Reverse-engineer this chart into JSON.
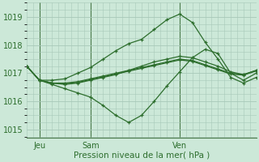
{
  "background_color": "#cce8d8",
  "grid_color": "#a8c8b8",
  "line_color": "#2d6e2d",
  "marker_color": "#2d6e2d",
  "xlabel": "Pression niveau de la mer( hPa )",
  "ylim": [
    1014.7,
    1019.5
  ],
  "yticks": [
    1015,
    1016,
    1017,
    1018,
    1019
  ],
  "xtick_labels": [
    "Jeu",
    "Sam",
    "Ven"
  ],
  "xtick_positions": [
    12,
    60,
    144
  ],
  "vline_positions": [
    12,
    60,
    144
  ],
  "num_points": 216,
  "series": [
    {
      "x": [
        0,
        12,
        24,
        36,
        48,
        60,
        72,
        84,
        96,
        108,
        120,
        132,
        144,
        156,
        168,
        180,
        192,
        204,
        216
      ],
      "y": [
        1017.25,
        1016.75,
        1016.75,
        1016.8,
        1017.0,
        1017.2,
        1017.5,
        1017.8,
        1018.05,
        1018.2,
        1018.55,
        1018.9,
        1019.1,
        1018.8,
        1018.1,
        1017.5,
        1016.85,
        1016.65,
        1016.85
      ]
    },
    {
      "x": [
        0,
        12,
        24,
        36,
        48,
        60,
        72,
        84,
        96,
        108,
        120,
        132,
        144,
        156,
        168,
        180,
        192,
        204,
        216
      ],
      "y": [
        1017.25,
        1016.75,
        1016.6,
        1016.45,
        1016.3,
        1016.15,
        1015.85,
        1015.5,
        1015.25,
        1015.5,
        1016.0,
        1016.55,
        1017.05,
        1017.55,
        1017.85,
        1017.7,
        1017.0,
        1016.75,
        1017.0
      ]
    },
    {
      "x": [
        0,
        12,
        24,
        36,
        48,
        60,
        72,
        84,
        96,
        108,
        120,
        132,
        144,
        156,
        168,
        180,
        192,
        204,
        216
      ],
      "y": [
        1017.25,
        1016.75,
        1016.65,
        1016.6,
        1016.65,
        1016.75,
        1016.85,
        1016.95,
        1017.1,
        1017.25,
        1017.4,
        1017.5,
        1017.6,
        1017.55,
        1017.4,
        1017.25,
        1017.05,
        1016.95,
        1017.1
      ]
    },
    {
      "x": [
        0,
        12,
        24,
        36,
        48,
        60,
        72,
        84,
        96,
        108,
        120,
        132,
        144,
        156,
        168,
        180,
        192,
        204,
        216
      ],
      "y": [
        1017.25,
        1016.75,
        1016.65,
        1016.65,
        1016.7,
        1016.8,
        1016.9,
        1017.0,
        1017.1,
        1017.2,
        1017.3,
        1017.4,
        1017.5,
        1017.45,
        1017.3,
        1017.15,
        1017.0,
        1016.95,
        1017.1
      ]
    },
    {
      "x": [
        0,
        12,
        24,
        36,
        48,
        60,
        72,
        84,
        96,
        108,
        120,
        132,
        144,
        156,
        168,
        180,
        192,
        204,
        216
      ],
      "y": [
        1017.25,
        1016.75,
        1016.65,
        1016.62,
        1016.67,
        1016.77,
        1016.87,
        1016.97,
        1017.07,
        1017.17,
        1017.27,
        1017.37,
        1017.47,
        1017.42,
        1017.27,
        1017.12,
        1016.97,
        1016.93,
        1017.08
      ]
    }
  ],
  "right_series": [
    {
      "x": [
        144,
        156,
        168,
        180,
        192,
        204,
        216
      ],
      "y": [
        1019.1,
        1018.05,
        1017.45,
        1016.85,
        1016.7,
        1017.1,
        1017.35
      ]
    },
    {
      "x": [
        144,
        156,
        168,
        180,
        192,
        204,
        216
      ],
      "y": [
        1017.05,
        1016.8,
        1016.75,
        1016.8,
        1016.9,
        1017.0,
        1017.05
      ]
    },
    {
      "x": [
        144,
        156,
        168,
        180,
        192,
        204,
        216
      ],
      "y": [
        1017.6,
        1017.5,
        1017.35,
        1017.2,
        1017.1,
        1017.0,
        1017.1
      ]
    }
  ]
}
